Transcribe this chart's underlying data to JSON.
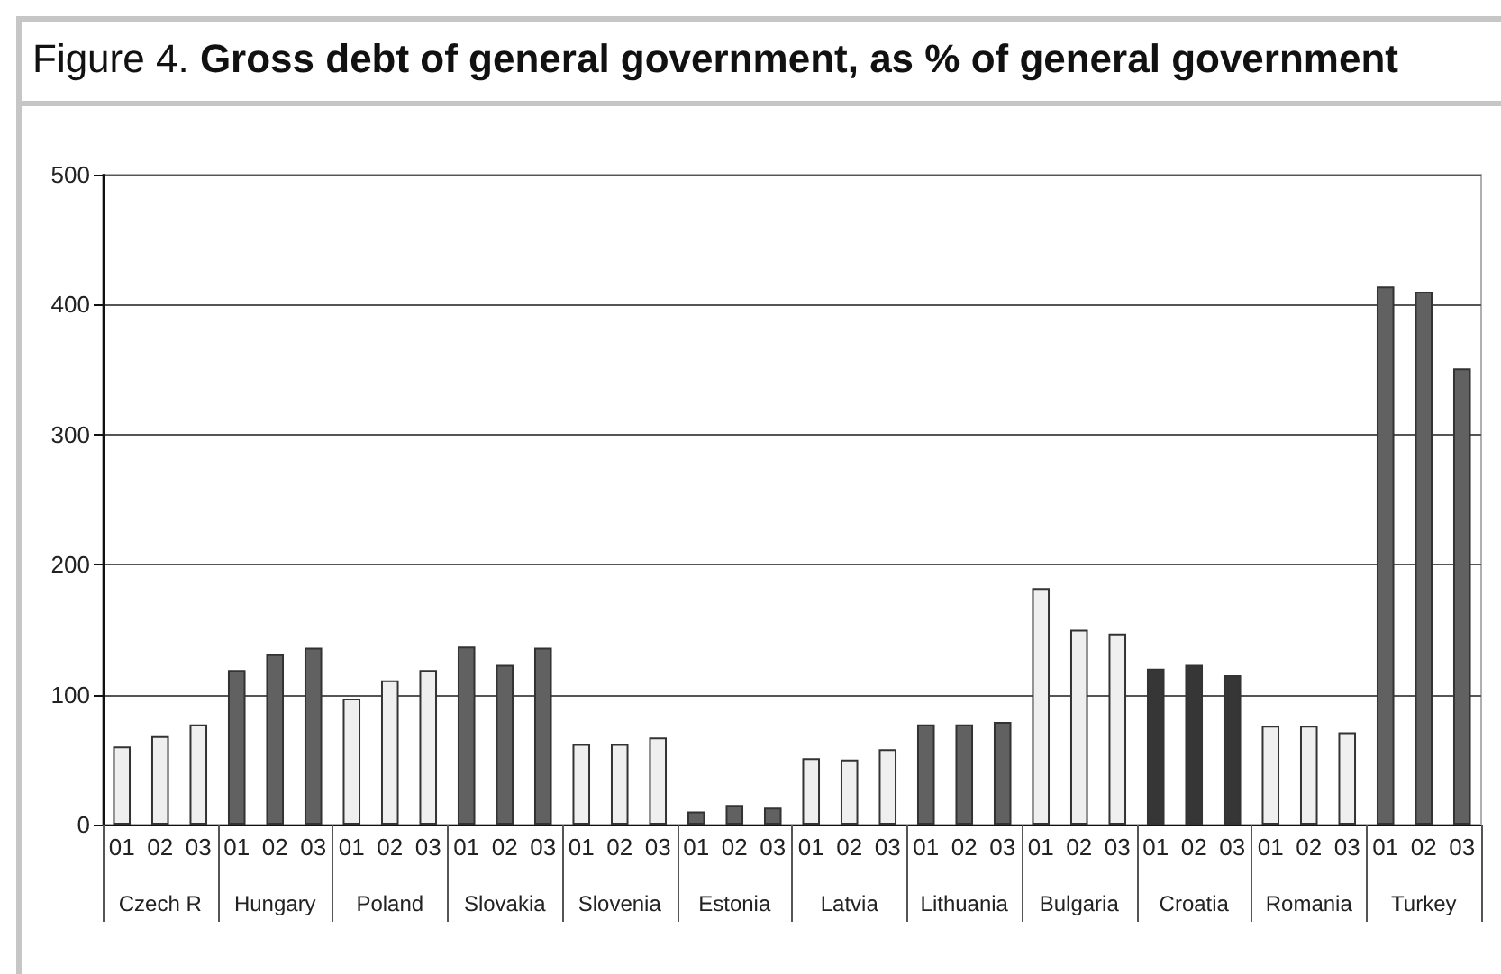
{
  "chart_data": {
    "type": "bar",
    "title": "Figure 4. Gross debt of general government, as % of general government",
    "categories": [
      "01",
      "02",
      "03",
      "01",
      "02",
      "03",
      "01",
      "02",
      "03",
      "01",
      "02",
      "03",
      "01",
      "02",
      "03",
      "01",
      "02",
      "03",
      "01",
      "02",
      "03",
      "01",
      "02",
      "03",
      "01",
      "02",
      "03",
      "01",
      "02",
      "03",
      "01",
      "02",
      "03",
      "01",
      "02",
      "03"
    ],
    "annotations": [
      "Czech R",
      "Hungary",
      "Poland",
      "Slovakia",
      "Slovenia",
      "Estonia",
      "Latvia",
      "Lithuania",
      "Bulgaria",
      "Croatia",
      "Romania",
      "Turkey"
    ],
    "values": [
      60,
      68,
      77,
      119,
      131,
      136,
      97,
      111,
      119,
      137,
      123,
      136,
      62,
      62,
      67,
      10,
      15,
      13,
      51,
      50,
      58,
      77,
      77,
      79,
      182,
      150,
      147,
      120,
      123,
      115,
      76,
      76,
      71,
      414,
      410,
      351
    ],
    "colors": [
      "#efefef",
      "#efefef",
      "#efefef",
      "#616161",
      "#616161",
      "#616161",
      "#efefef",
      "#efefef",
      "#efefef",
      "#616161",
      "#616161",
      "#616161",
      "#efefef",
      "#efefef",
      "#efefef",
      "#616161",
      "#616161",
      "#616161",
      "#efefef",
      "#efefef",
      "#efefef",
      "#616161",
      "#616161",
      "#616161",
      "#efefef",
      "#efefef",
      "#efefef",
      "#363636",
      "#363636",
      "#363636",
      "#efefef",
      "#efefef",
      "#efefef",
      "#616161",
      "#616161",
      "#616161"
    ],
    "ylim": [
      0,
      500
    ],
    "yticks": [
      0,
      100,
      200,
      300,
      400,
      500
    ],
    "grid": "y"
  }
}
